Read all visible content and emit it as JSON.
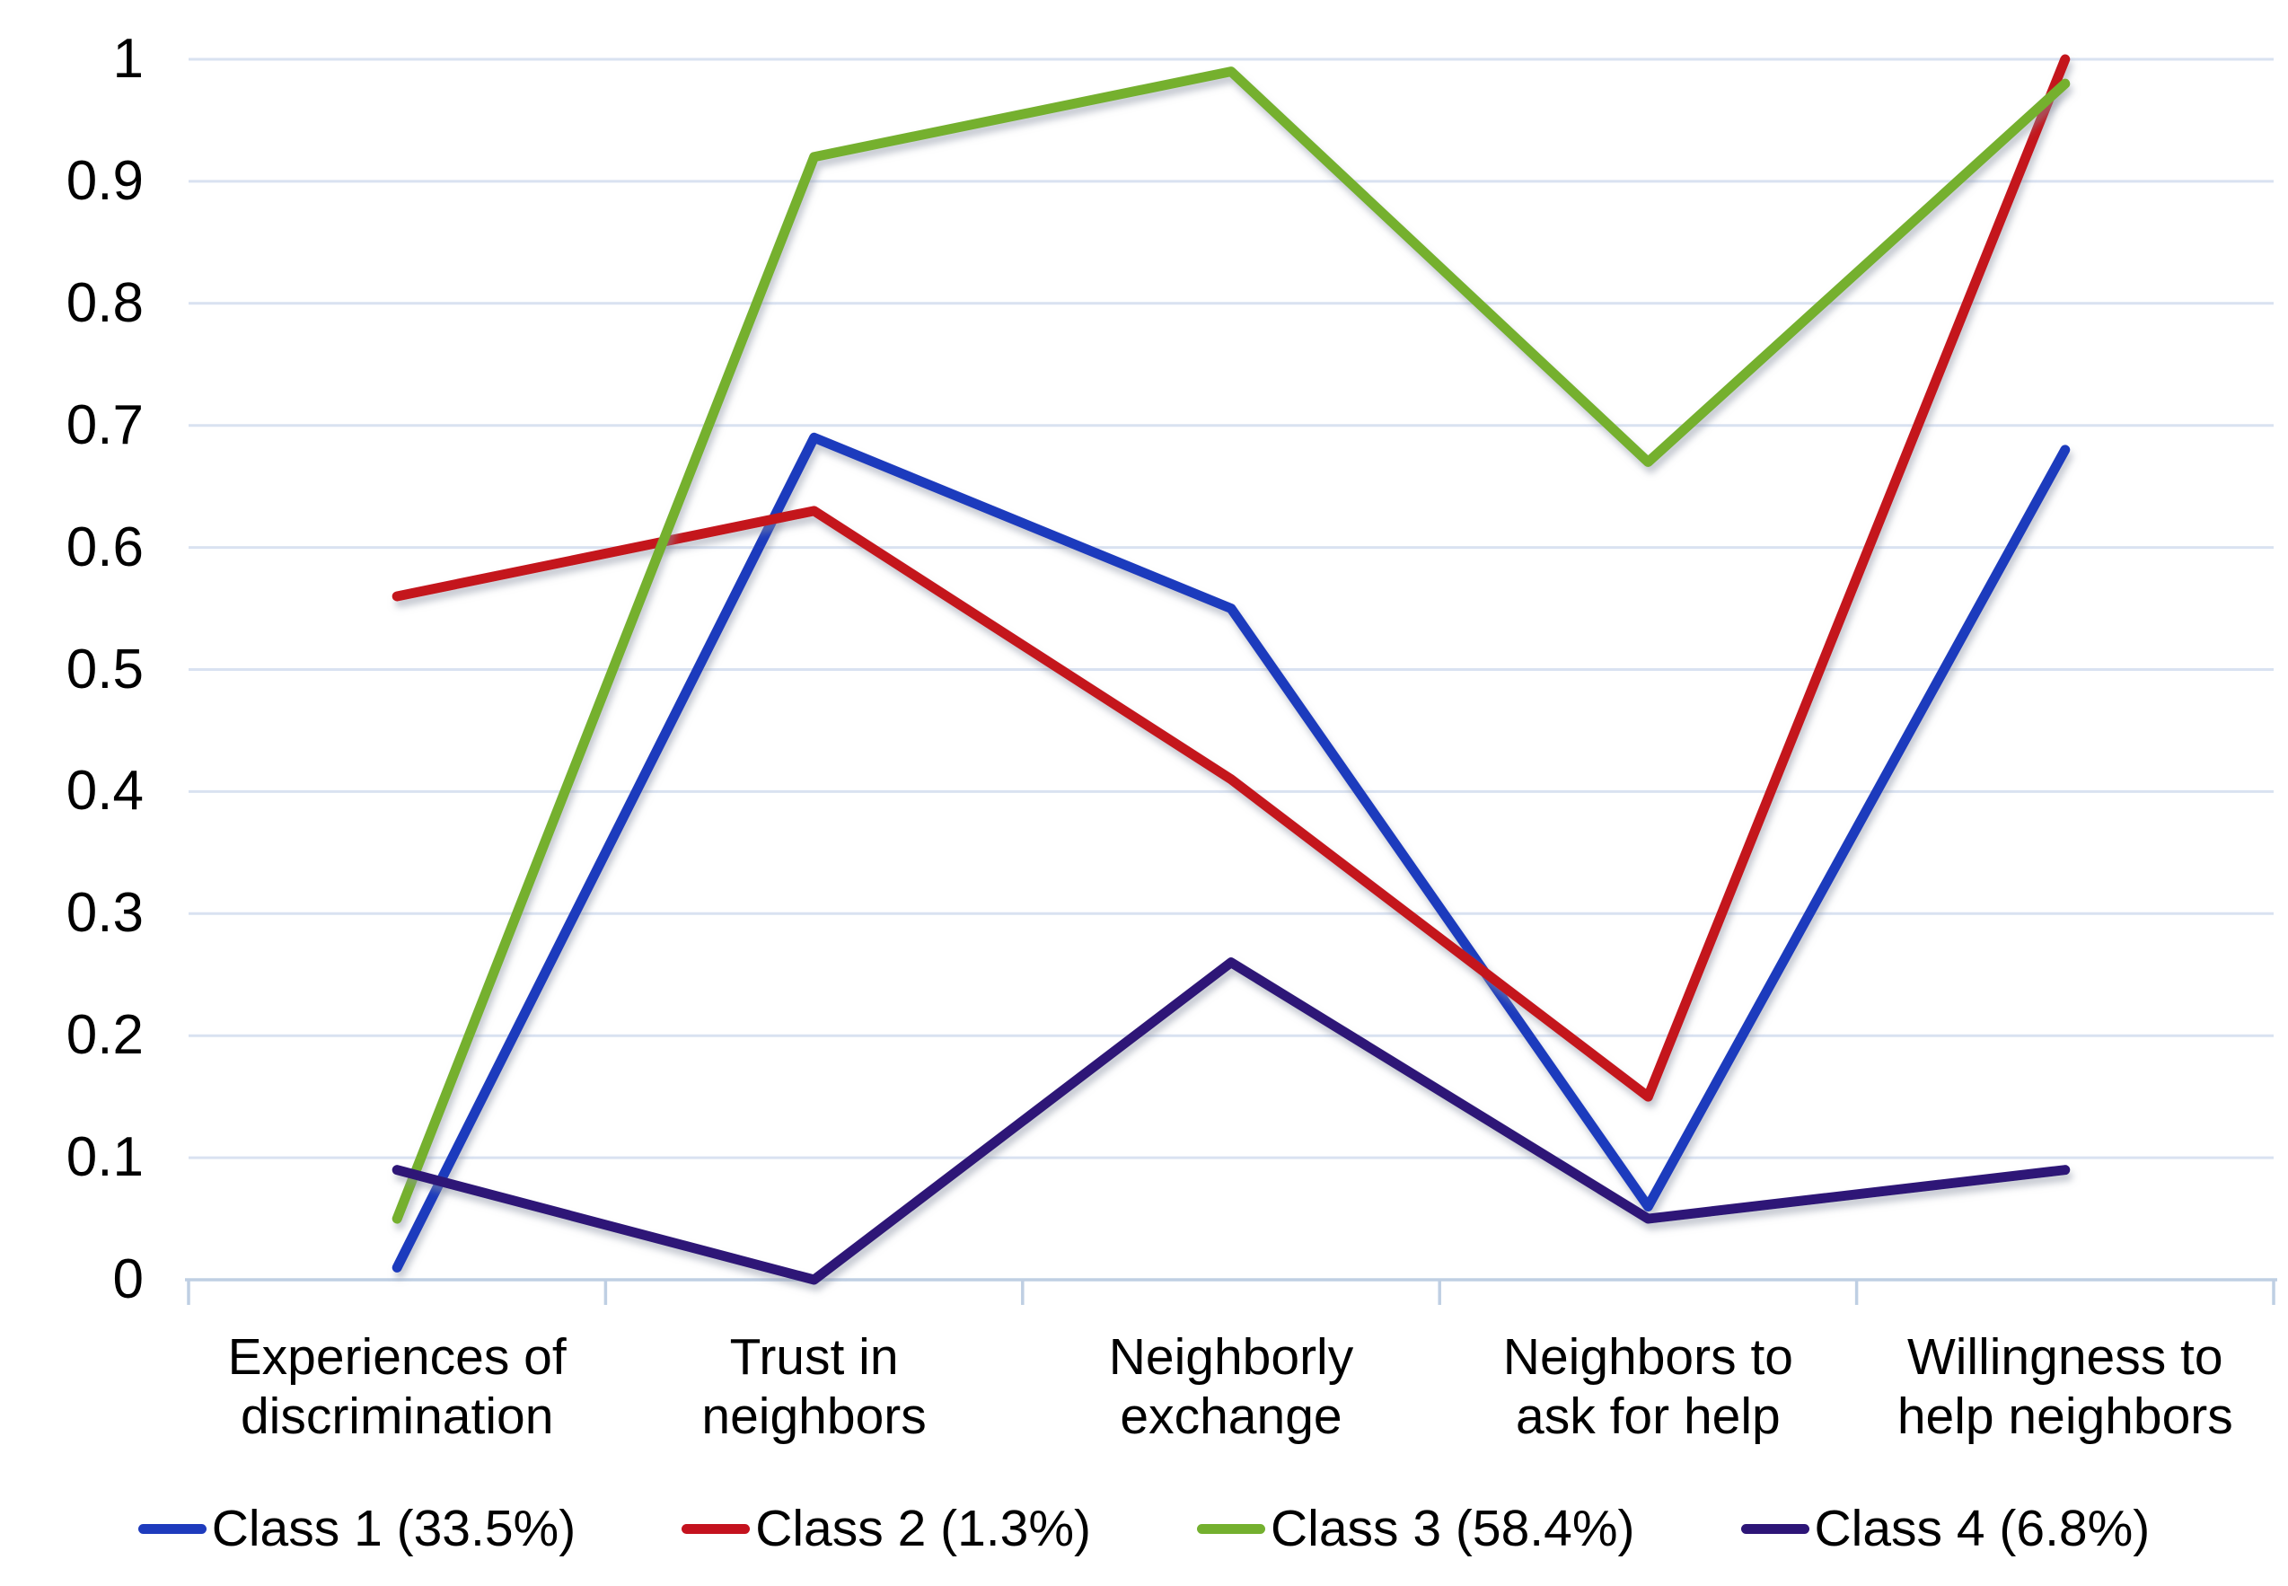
{
  "chart_data": {
    "type": "line",
    "categories": [
      "Experiences of discrimination",
      "Trust in neighbors",
      "Neighborly exchange",
      "Neighbors to ask for help",
      "Willingness to help neighbors"
    ],
    "x_labels_wrapped": [
      [
        "Experiences of",
        "discrimination"
      ],
      [
        "Trust in",
        "neighbors"
      ],
      [
        "Neighborly",
        "exchange"
      ],
      [
        "Neighbors to",
        "ask for help"
      ],
      [
        "Willingness to",
        "help neighbors"
      ]
    ],
    "series": [
      {
        "name": "Class 1 (33.5%)",
        "color": "#1E3BBD",
        "values": [
          0.01,
          0.69,
          0.55,
          0.06,
          0.68
        ]
      },
      {
        "name": "Class 2 (1.3%)",
        "color": "#C4121E",
        "values": [
          0.56,
          0.63,
          0.41,
          0.15,
          1.0
        ]
      },
      {
        "name": "Class 3 (58.4%)",
        "color": "#74B02F",
        "values": [
          0.05,
          0.92,
          0.99,
          0.67,
          0.98
        ]
      },
      {
        "name": "Class 4 (6.8%)",
        "color": "#2D1577",
        "values": [
          0.09,
          0.0,
          0.26,
          0.05,
          0.09
        ]
      }
    ],
    "y_ticks": [
      "0",
      "0.1",
      "0.2",
      "0.3",
      "0.4",
      "0.5",
      "0.6",
      "0.7",
      "0.8",
      "0.9",
      "1"
    ],
    "ylim": [
      0,
      1
    ],
    "grid": true,
    "legend_position": "bottom",
    "grid_color": "#D9E2F1",
    "axis_color": "#BFCFE3",
    "text_color": "#000000"
  }
}
